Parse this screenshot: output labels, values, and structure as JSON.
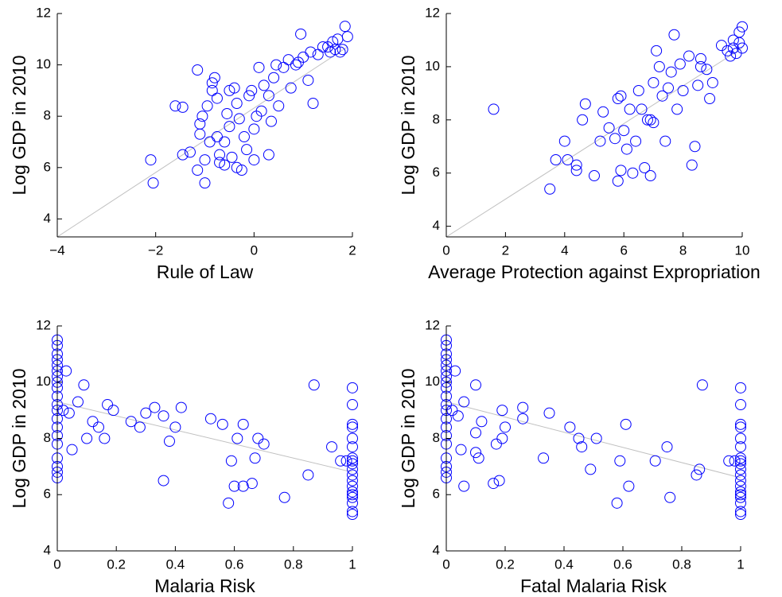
{
  "chart_data": [
    {
      "type": "scatter",
      "xlabel": "Rule of Law",
      "ylabel": "Log GDP in 2010",
      "color": "#0000ff",
      "fit_color": "#c0c0c0",
      "x": [
        -2.1,
        -2.05,
        -1.6,
        -1.45,
        -1.45,
        -1.3,
        -1.15,
        -1.15,
        -1.1,
        -1.1,
        -1.05,
        -1.0,
        -1.0,
        -0.95,
        -0.9,
        -0.85,
        -0.8,
        -0.75,
        -0.75,
        -0.7,
        -0.7,
        -0.6,
        -0.55,
        -0.5,
        -0.5,
        -0.45,
        -0.4,
        -0.35,
        -0.35,
        -0.3,
        -0.25,
        -0.2,
        -0.15,
        -0.1,
        -0.05,
        0,
        0,
        0.05,
        0.1,
        0.15,
        0.2,
        0.3,
        0.35,
        0.4,
        0.45,
        0.5,
        0.6,
        0.7,
        0.75,
        0.85,
        0.9,
        0.95,
        1.0,
        1.1,
        1.15,
        1.2,
        1.3,
        1.4,
        1.5,
        1.55,
        1.6,
        1.65,
        1.7,
        1.75,
        1.8,
        1.85,
        1.9,
        -0.85,
        -0.6,
        0.3
      ],
      "y": [
        6.3,
        5.4,
        8.4,
        8.35,
        6.5,
        6.6,
        9.8,
        5.9,
        7.3,
        7.7,
        8.0,
        6.3,
        5.4,
        8.4,
        7.0,
        9.3,
        9.5,
        8.7,
        7.2,
        6.5,
        6.2,
        7.0,
        8.1,
        9.0,
        7.6,
        6.4,
        9.1,
        8.5,
        6.0,
        7.9,
        5.9,
        7.2,
        6.7,
        8.8,
        9.0,
        6.3,
        7.5,
        8.0,
        9.9,
        8.2,
        9.2,
        8.8,
        7.8,
        9.5,
        10.0,
        8.4,
        9.9,
        10.2,
        9.1,
        10.0,
        10.1,
        11.2,
        10.3,
        9.4,
        10.5,
        8.5,
        10.4,
        10.7,
        10.7,
        10.5,
        10.9,
        10.6,
        11.0,
        10.5,
        10.6,
        11.5,
        11.1,
        9.0,
        6.1,
        6.5
      ],
      "fit": {
        "x": [
          -4,
          1.9
        ],
        "y": [
          3.3,
          10.7
        ]
      },
      "xlim": [
        -4,
        2
      ],
      "ylim": [
        3.3,
        12
      ],
      "xticks": [
        {
          "value": -4,
          "label": "−4"
        },
        {
          "value": -2,
          "label": "−2"
        },
        0,
        2
      ],
      "yticks": [
        4,
        6,
        8,
        10,
        12
      ]
    },
    {
      "type": "scatter",
      "xlabel": "Average Protection against Expropriation",
      "ylabel": "Log GDP in 2010",
      "color": "#0000ff",
      "fit_color": "#c0c0c0",
      "x": [
        1.6,
        3.5,
        3.7,
        4.0,
        4.1,
        4.4,
        4.4,
        4.6,
        4.7,
        5.0,
        5.2,
        5.3,
        5.5,
        5.7,
        5.8,
        5.9,
        5.9,
        6.0,
        6.1,
        6.2,
        6.3,
        6.4,
        6.5,
        6.6,
        6.7,
        6.8,
        6.9,
        7.0,
        7.0,
        7.1,
        7.2,
        7.3,
        7.4,
        7.5,
        7.6,
        7.7,
        7.8,
        7.9,
        8.0,
        8.2,
        8.3,
        8.4,
        8.5,
        8.6,
        8.8,
        8.9,
        9.0,
        9.3,
        9.5,
        9.6,
        9.7,
        9.7,
        9.8,
        9.9,
        10.0,
        10.0,
        9.9,
        8.6,
        6.9,
        5.8
      ],
      "y": [
        8.4,
        5.4,
        6.5,
        7.2,
        6.5,
        6.3,
        6.1,
        8.0,
        8.6,
        5.9,
        7.2,
        8.3,
        7.7,
        7.3,
        5.7,
        6.1,
        8.9,
        7.6,
        6.9,
        8.4,
        6.0,
        7.2,
        9.1,
        8.4,
        6.2,
        8.0,
        5.9,
        7.9,
        9.4,
        10.6,
        10.0,
        8.9,
        7.2,
        9.2,
        9.8,
        11.2,
        8.4,
        10.1,
        9.1,
        10.4,
        6.3,
        7.0,
        9.3,
        10.3,
        9.9,
        8.8,
        9.4,
        10.8,
        10.6,
        10.4,
        10.7,
        11.0,
        10.5,
        11.3,
        11.5,
        10.7,
        10.9,
        10.0,
        8.0,
        8.8
      ],
      "fit": {
        "x": [
          0,
          10
        ],
        "y": [
          3.6,
          10.7
        ]
      },
      "xlim": [
        0,
        10
      ],
      "ylim": [
        3.6,
        12
      ],
      "xticks": [
        0,
        2,
        4,
        6,
        8,
        10
      ],
      "yticks": [
        4,
        6,
        8,
        10,
        12
      ]
    },
    {
      "type": "scatter",
      "xlabel": "Malaria Risk",
      "ylabel": "Log GDP in 2010",
      "color": "#0000ff",
      "fit_color": "#c0c0c0",
      "x": [
        0,
        0,
        0,
        0,
        0,
        0,
        0,
        0,
        0,
        0,
        0,
        0,
        0,
        0,
        0,
        0,
        0,
        0,
        0,
        0,
        0.02,
        0.03,
        0.04,
        0.05,
        0.07,
        0.09,
        0.1,
        0.12,
        0.14,
        0.16,
        0.17,
        0.19,
        0.25,
        0.28,
        0.3,
        0.33,
        0.36,
        0.36,
        0.38,
        0.4,
        0.42,
        0.52,
        0.56,
        0.58,
        0.59,
        0.6,
        0.61,
        0.63,
        0.63,
        0.66,
        0.67,
        0.68,
        0.7,
        0.77,
        0.85,
        0.87,
        0.93,
        0.96,
        0.98,
        1,
        1,
        1,
        1,
        1,
        1,
        1,
        1,
        1,
        1,
        1,
        1,
        1,
        1,
        1,
        1,
        1,
        1,
        1
      ],
      "y": [
        11.5,
        11.3,
        11.0,
        10.8,
        10.6,
        10.4,
        10.2,
        10.0,
        9.8,
        9.5,
        9.2,
        9.0,
        8.7,
        8.4,
        8.1,
        7.8,
        7.3,
        7.0,
        6.8,
        6.6,
        9.0,
        10.4,
        8.9,
        7.6,
        9.3,
        9.9,
        8.0,
        8.6,
        8.4,
        8.0,
        9.2,
        9.0,
        8.6,
        8.4,
        8.9,
        9.1,
        8.8,
        6.5,
        7.9,
        8.4,
        9.1,
        8.7,
        8.5,
        5.7,
        7.2,
        6.3,
        8.0,
        6.3,
        8.5,
        6.4,
        7.3,
        8.0,
        7.8,
        5.9,
        6.7,
        9.9,
        7.7,
        7.2,
        7.2,
        9.8,
        9.2,
        8.5,
        8.4,
        8.0,
        7.7,
        7.3,
        7.2,
        7.1,
        6.9,
        6.7,
        6.5,
        6.3,
        6.1,
        6.0,
        5.9,
        5.7,
        5.4,
        5.3
      ],
      "fit": {
        "x": [
          0,
          1
        ],
        "y": [
          9.3,
          6.8
        ]
      },
      "xlim": [
        0,
        1
      ],
      "ylim": [
        4,
        12
      ],
      "xticks": [
        0,
        0.2,
        0.4,
        0.6,
        0.8,
        1
      ],
      "yticks": [
        4,
        6,
        8,
        10,
        12
      ]
    },
    {
      "type": "scatter",
      "xlabel": "Fatal Malaria Risk",
      "ylabel": "Log GDP in 2010",
      "color": "#0000ff",
      "fit_color": "#c0c0c0",
      "x": [
        0,
        0,
        0,
        0,
        0,
        0,
        0,
        0,
        0,
        0,
        0,
        0,
        0,
        0,
        0,
        0,
        0,
        0,
        0,
        0,
        0.02,
        0.03,
        0.04,
        0.05,
        0.06,
        0.06,
        0.1,
        0.1,
        0.1,
        0.11,
        0.12,
        0.16,
        0.17,
        0.18,
        0.19,
        0.19,
        0.2,
        0.26,
        0.26,
        0.33,
        0.35,
        0.42,
        0.45,
        0.46,
        0.49,
        0.51,
        0.58,
        0.59,
        0.61,
        0.62,
        0.71,
        0.75,
        0.76,
        0.85,
        0.86,
        0.87,
        0.96,
        0.98,
        1,
        1,
        1,
        1,
        1,
        1,
        1,
        1,
        1,
        1,
        1,
        1,
        1,
        1,
        1,
        1,
        1,
        1,
        1
      ],
      "y": [
        11.5,
        11.3,
        11.0,
        10.8,
        10.6,
        10.4,
        10.2,
        10.0,
        9.8,
        9.5,
        9.2,
        9.0,
        8.7,
        8.4,
        8.1,
        7.8,
        7.3,
        7.0,
        6.8,
        6.6,
        9.0,
        10.4,
        8.8,
        7.6,
        9.3,
        6.3,
        9.9,
        7.5,
        8.2,
        7.3,
        8.6,
        6.4,
        7.8,
        6.5,
        9.0,
        8.0,
        8.4,
        9.1,
        8.7,
        7.3,
        8.9,
        8.4,
        8.0,
        7.7,
        6.9,
        8.0,
        5.7,
        7.2,
        8.5,
        6.3,
        7.2,
        7.7,
        5.9,
        6.7,
        6.9,
        9.9,
        7.2,
        7.2,
        9.8,
        9.2,
        8.5,
        8.4,
        8.0,
        7.7,
        7.3,
        7.2,
        7.1,
        6.9,
        6.7,
        6.5,
        6.3,
        6.1,
        6.0,
        5.9,
        5.7,
        5.4,
        5.3
      ],
      "fit": {
        "x": [
          0,
          1
        ],
        "y": [
          9.3,
          6.6
        ]
      },
      "xlim": [
        0,
        1
      ],
      "ylim": [
        4,
        12
      ],
      "xticks": [
        0,
        0.2,
        0.4,
        0.6,
        0.8,
        1
      ],
      "yticks": [
        4,
        6,
        8,
        10,
        12
      ]
    }
  ]
}
